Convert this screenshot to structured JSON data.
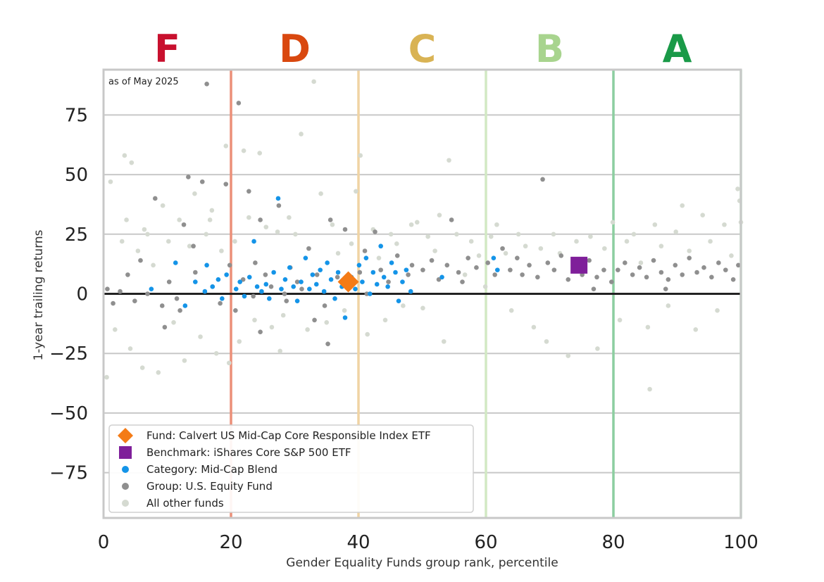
{
  "chart_data": {
    "type": "scatter",
    "title": "",
    "note": "as of May 2025",
    "xlabel": "Gender Equality Funds group rank, percentile",
    "ylabel": "1-year trailing returns",
    "xlim": [
      0,
      100
    ],
    "ylim": [
      -94,
      94
    ],
    "x_ticks": [
      0,
      20,
      40,
      60,
      80,
      100
    ],
    "x_tick_labels": [
      "0",
      "20",
      "40",
      "60",
      "80",
      "100"
    ],
    "y_ticks": [
      75,
      50,
      25,
      0,
      -25,
      -50,
      -75
    ],
    "y_tick_labels": [
      "75",
      "50",
      "25",
      "0",
      "−25",
      "−50",
      "−75"
    ],
    "grid": "horizontal",
    "legend_position": "bottom-left",
    "grades": [
      {
        "label": "F",
        "x_center": 10,
        "color": "#c8102e"
      },
      {
        "label": "D",
        "x_center": 30,
        "color": "#d9480f"
      },
      {
        "label": "C",
        "x_center": 50,
        "color": "#d9b354"
      },
      {
        "label": "B",
        "x_center": 70,
        "color": "#a8d48e"
      },
      {
        "label": "A",
        "x_center": 90,
        "color": "#1a9a48"
      }
    ],
    "grade_boundaries": [
      {
        "x": 20,
        "color": "#ec8f78"
      },
      {
        "x": 40,
        "color": "#f0d4a4"
      },
      {
        "x": 60,
        "color": "#d2e9c4"
      },
      {
        "x": 80,
        "color": "#8ccea0"
      },
      {
        "x": 100,
        "color": "#b6dfc0"
      }
    ],
    "series": [
      {
        "name": "Fund: Calvert US Mid-Cap Core Responsible Index ETF",
        "marker": "diamond",
        "color": "#f47b16",
        "points": [
          [
            38.4,
            5
          ]
        ]
      },
      {
        "name": "Benchmark: iShares Core S&P 500 ETF",
        "marker": "square",
        "color": "#7f1f9a",
        "points": [
          [
            74.6,
            12
          ]
        ]
      },
      {
        "name": "Category: Mid-Cap Blend",
        "marker": "circle",
        "color": "#1494e8",
        "points": [
          [
            7.5,
            2
          ],
          [
            11.3,
            13
          ],
          [
            12.8,
            -5
          ],
          [
            14.4,
            5
          ],
          [
            15.9,
            1
          ],
          [
            16.2,
            12
          ],
          [
            17.1,
            3
          ],
          [
            18.0,
            6
          ],
          [
            18.6,
            -2
          ],
          [
            19.3,
            8
          ],
          [
            20.8,
            2
          ],
          [
            21.4,
            5
          ],
          [
            22.1,
            -1
          ],
          [
            22.9,
            7
          ],
          [
            23.6,
            22
          ],
          [
            24.1,
            3
          ],
          [
            24.8,
            1
          ],
          [
            25.5,
            4
          ],
          [
            26.0,
            -2
          ],
          [
            26.7,
            9
          ],
          [
            27.4,
            40
          ],
          [
            27.9,
            2
          ],
          [
            28.5,
            6
          ],
          [
            29.2,
            11
          ],
          [
            29.8,
            3
          ],
          [
            30.4,
            -3
          ],
          [
            31.0,
            5
          ],
          [
            31.7,
            15
          ],
          [
            32.3,
            2
          ],
          [
            32.8,
            8
          ],
          [
            33.4,
            4
          ],
          [
            34.0,
            10
          ],
          [
            34.6,
            1
          ],
          [
            35.1,
            13
          ],
          [
            35.7,
            6
          ],
          [
            36.3,
            -2
          ],
          [
            36.8,
            9
          ],
          [
            37.4,
            3
          ],
          [
            37.9,
            -10
          ],
          [
            38.9,
            7
          ],
          [
            39.5,
            2
          ],
          [
            40.1,
            12
          ],
          [
            40.6,
            5
          ],
          [
            41.2,
            15
          ],
          [
            41.8,
            0
          ],
          [
            42.3,
            9
          ],
          [
            42.9,
            4
          ],
          [
            43.5,
            20
          ],
          [
            44.0,
            7
          ],
          [
            44.6,
            3
          ],
          [
            45.2,
            13
          ],
          [
            45.8,
            9
          ],
          [
            46.3,
            -3
          ],
          [
            46.9,
            5
          ],
          [
            47.5,
            10
          ],
          [
            48.2,
            1
          ],
          [
            53.1,
            7
          ],
          [
            61.2,
            15
          ],
          [
            61.8,
            10
          ]
        ]
      },
      {
        "name": "Group: U.S. Equity Fund",
        "marker": "circle",
        "color": "#8f8f8f",
        "points": [
          [
            0.6,
            2
          ],
          [
            1.5,
            -4
          ],
          [
            2.6,
            1
          ],
          [
            3.8,
            8
          ],
          [
            4.9,
            -3
          ],
          [
            5.8,
            14
          ],
          [
            6.9,
            0
          ],
          [
            8.1,
            40
          ],
          [
            9.2,
            -5
          ],
          [
            10.3,
            5
          ],
          [
            11.5,
            -2
          ],
          [
            12.6,
            29
          ],
          [
            13.3,
            49
          ],
          [
            14.4,
            9
          ],
          [
            15.5,
            47
          ],
          [
            16.2,
            88
          ],
          [
            17.1,
            3
          ],
          [
            18.3,
            -4
          ],
          [
            19.2,
            46
          ],
          [
            19.8,
            12
          ],
          [
            20.7,
            -7
          ],
          [
            21.2,
            80
          ],
          [
            21.9,
            6
          ],
          [
            22.8,
            43
          ],
          [
            23.5,
            -1
          ],
          [
            24.6,
            31
          ],
          [
            25.4,
            8
          ],
          [
            26.3,
            3
          ],
          [
            27.5,
            37
          ],
          [
            28.4,
            0
          ],
          [
            29.3,
            11
          ],
          [
            30.4,
            5
          ],
          [
            31.1,
            2
          ],
          [
            32.2,
            19
          ],
          [
            33.5,
            8
          ],
          [
            34.7,
            -5
          ],
          [
            35.6,
            31
          ],
          [
            36.7,
            7
          ],
          [
            37.9,
            27
          ],
          [
            38.8,
            4
          ],
          [
            40.2,
            9
          ],
          [
            41.3,
            0
          ],
          [
            42.6,
            26
          ],
          [
            43.5,
            10
          ],
          [
            44.7,
            5
          ],
          [
            46.1,
            16
          ],
          [
            47.8,
            8
          ],
          [
            48.4,
            12
          ],
          [
            50.1,
            10
          ],
          [
            51.5,
            14
          ],
          [
            52.6,
            6
          ],
          [
            53.9,
            12
          ],
          [
            54.6,
            31
          ],
          [
            55.7,
            9
          ],
          [
            57.2,
            15
          ],
          [
            58.5,
            11
          ],
          [
            60.3,
            13
          ],
          [
            61.4,
            8
          ],
          [
            62.6,
            19
          ],
          [
            63.8,
            10
          ],
          [
            64.9,
            15
          ],
          [
            65.7,
            8
          ],
          [
            66.8,
            12
          ],
          [
            68.1,
            7
          ],
          [
            68.9,
            48
          ],
          [
            69.7,
            13
          ],
          [
            70.7,
            10
          ],
          [
            71.8,
            16
          ],
          [
            72.9,
            6
          ],
          [
            74.0,
            11
          ],
          [
            75.1,
            8
          ],
          [
            76.2,
            14
          ],
          [
            77.4,
            7
          ],
          [
            78.5,
            10
          ],
          [
            79.7,
            5
          ],
          [
            80.7,
            10
          ],
          [
            81.8,
            13
          ],
          [
            83.0,
            8
          ],
          [
            84.1,
            11
          ],
          [
            85.2,
            7
          ],
          [
            86.3,
            14
          ],
          [
            87.5,
            9
          ],
          [
            88.6,
            6
          ],
          [
            89.7,
            12
          ],
          [
            90.8,
            8
          ],
          [
            91.9,
            15
          ],
          [
            93.1,
            9
          ],
          [
            94.2,
            11
          ],
          [
            95.4,
            7
          ],
          [
            96.5,
            13
          ],
          [
            97.6,
            10
          ],
          [
            98.8,
            6
          ],
          [
            99.6,
            12
          ],
          [
            14.1,
            20
          ],
          [
            12.0,
            -7
          ],
          [
            24.6,
            -16
          ],
          [
            35.2,
            -21
          ],
          [
            23.8,
            13
          ],
          [
            33.1,
            -11
          ],
          [
            28.7,
            -3
          ],
          [
            9.6,
            -14
          ],
          [
            41.0,
            18
          ],
          [
            56.3,
            5
          ],
          [
            76.9,
            2
          ],
          [
            88.2,
            2
          ]
        ]
      },
      {
        "name": "All other funds",
        "marker": "circle",
        "color": "#d5dad1",
        "points": [
          [
            0.5,
            -35
          ],
          [
            1.1,
            47
          ],
          [
            1.8,
            -15
          ],
          [
            2.9,
            22
          ],
          [
            3.3,
            58
          ],
          [
            3.6,
            31
          ],
          [
            4.2,
            -23
          ],
          [
            4.4,
            55
          ],
          [
            5.4,
            18
          ],
          [
            6.1,
            -31
          ],
          [
            6.9,
            25
          ],
          [
            7.8,
            12
          ],
          [
            8.6,
            -33
          ],
          [
            9.3,
            37
          ],
          [
            10.2,
            22
          ],
          [
            11.0,
            -12
          ],
          [
            11.9,
            31
          ],
          [
            12.7,
            -28
          ],
          [
            13.5,
            20
          ],
          [
            14.3,
            42
          ],
          [
            15.2,
            -18
          ],
          [
            16.1,
            25
          ],
          [
            17.0,
            35
          ],
          [
            17.7,
            -25
          ],
          [
            18.5,
            18
          ],
          [
            19.2,
            62
          ],
          [
            19.7,
            -29
          ],
          [
            20.6,
            22
          ],
          [
            21.3,
            -20
          ],
          [
            22.0,
            60
          ],
          [
            22.8,
            32
          ],
          [
            23.7,
            -11
          ],
          [
            24.5,
            59
          ],
          [
            25.5,
            28
          ],
          [
            26.4,
            -14
          ],
          [
            27.3,
            26
          ],
          [
            28.2,
            -9
          ],
          [
            29.1,
            32
          ],
          [
            30.1,
            25
          ],
          [
            31.0,
            67
          ],
          [
            32.0,
            -15
          ],
          [
            33.0,
            89
          ],
          [
            34.1,
            42
          ],
          [
            35.0,
            -12
          ],
          [
            35.9,
            29
          ],
          [
            36.8,
            17
          ],
          [
            37.8,
            -7
          ],
          [
            38.9,
            21
          ],
          [
            39.6,
            43
          ],
          [
            40.3,
            58
          ],
          [
            41.4,
            -17
          ],
          [
            42.3,
            27
          ],
          [
            43.2,
            15
          ],
          [
            44.2,
            -11
          ],
          [
            45.1,
            25
          ],
          [
            46.0,
            21
          ],
          [
            47.0,
            -5
          ],
          [
            48.3,
            29
          ],
          [
            49.2,
            30
          ],
          [
            50.1,
            -6
          ],
          [
            50.9,
            24
          ],
          [
            52.0,
            18
          ],
          [
            53.4,
            -20
          ],
          [
            54.2,
            56
          ],
          [
            55.4,
            25
          ],
          [
            56.7,
            8
          ],
          [
            57.7,
            22
          ],
          [
            58.9,
            16
          ],
          [
            59.9,
            3
          ],
          [
            60.8,
            24
          ],
          [
            61.7,
            29
          ],
          [
            63.1,
            17
          ],
          [
            64.0,
            -7
          ],
          [
            65.1,
            25
          ],
          [
            66.2,
            20
          ],
          [
            67.5,
            -14
          ],
          [
            68.6,
            19
          ],
          [
            69.5,
            -20
          ],
          [
            70.6,
            25
          ],
          [
            71.6,
            17
          ],
          [
            72.9,
            -26
          ],
          [
            74.2,
            22
          ],
          [
            75.3,
            12
          ],
          [
            76.4,
            24
          ],
          [
            77.5,
            -23
          ],
          [
            78.6,
            19
          ],
          [
            79.9,
            30
          ],
          [
            81.0,
            -11
          ],
          [
            82.1,
            22
          ],
          [
            83.2,
            25
          ],
          [
            84.3,
            13
          ],
          [
            85.4,
            -14
          ],
          [
            86.5,
            29
          ],
          [
            87.5,
            20
          ],
          [
            88.6,
            -5
          ],
          [
            89.8,
            26
          ],
          [
            90.8,
            37
          ],
          [
            91.9,
            18
          ],
          [
            92.9,
            -15
          ],
          [
            94.0,
            33
          ],
          [
            95.2,
            22
          ],
          [
            96.3,
            -7
          ],
          [
            97.4,
            29
          ],
          [
            98.5,
            16
          ],
          [
            99.5,
            44
          ],
          [
            99.8,
            39
          ],
          [
            100.0,
            30
          ],
          [
            85.7,
            -40
          ],
          [
            6.4,
            27
          ],
          [
            16.7,
            31
          ],
          [
            27.7,
            -24
          ],
          [
            52.7,
            33
          ]
        ]
      }
    ]
  }
}
